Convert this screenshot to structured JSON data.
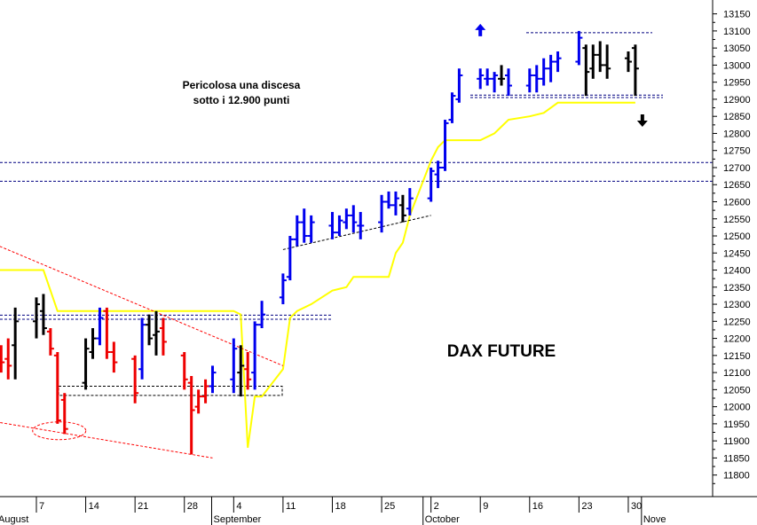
{
  "chart_data": {
    "type": "ohlc-bar",
    "title": "DAX FUTURE",
    "annotation": [
      "Pericolosa una discesa",
      "sotto i 12.900 punti"
    ],
    "y_ticks": [
      11800,
      11850,
      11900,
      11950,
      12000,
      12050,
      12100,
      12150,
      12200,
      12250,
      12300,
      12350,
      12400,
      12450,
      12500,
      12550,
      12600,
      12650,
      12700,
      12750,
      12800,
      12850,
      12900,
      12950,
      13000,
      13050,
      13100,
      13150
    ],
    "ylim": [
      11755,
      13175
    ],
    "x_day_ticks": [
      "7",
      "14",
      "21",
      "28",
      "4",
      "11",
      "18",
      "25",
      "2",
      "9",
      "16",
      "23",
      "30"
    ],
    "x_month_labels": [
      "August",
      "September",
      "October",
      "Nove"
    ],
    "colors": {
      "up": "#0000ee",
      "down": "#ee0000",
      "neutral": "#000000",
      "ma": "#ffff00",
      "level": "#000080",
      "trend": "#ff0000"
    },
    "levels": [
      12660,
      12665,
      12905,
      12912,
      12268,
      12033,
      12060
    ],
    "bars": [
      {
        "d": "Aug 1",
        "o": 12230,
        "h": 12260,
        "l": 12120,
        "c": 12180,
        "color": "black"
      },
      {
        "d": "Aug 2",
        "o": 12150,
        "h": 12180,
        "l": 12100,
        "c": 12130,
        "color": "red"
      },
      {
        "d": "Aug 3",
        "o": 12140,
        "h": 12200,
        "l": 12080,
        "c": 12120,
        "color": "red"
      },
      {
        "d": "Aug 4",
        "o": 12180,
        "h": 12290,
        "l": 12080,
        "c": 12250,
        "color": "black"
      },
      {
        "d": "Aug 7",
        "o": 12250,
        "h": 12320,
        "l": 12200,
        "c": 12300,
        "color": "black"
      },
      {
        "d": "Aug 8",
        "o": 12280,
        "h": 12330,
        "l": 12210,
        "c": 12230,
        "color": "black"
      },
      {
        "d": "Aug 9",
        "o": 12220,
        "h": 12230,
        "l": 12150,
        "c": 12170,
        "color": "red"
      },
      {
        "d": "Aug 10",
        "o": 12150,
        "h": 12160,
        "l": 11950,
        "c": 11960,
        "color": "red"
      },
      {
        "d": "Aug 11",
        "o": 12020,
        "h": 12040,
        "l": 11920,
        "c": 11935,
        "color": "red"
      },
      {
        "d": "Aug 14",
        "o": 12070,
        "h": 12200,
        "l": 12050,
        "c": 12170,
        "color": "black"
      },
      {
        "d": "Aug 15",
        "o": 12160,
        "h": 12230,
        "l": 12140,
        "c": 12200,
        "color": "black"
      },
      {
        "d": "Aug 16",
        "o": 12200,
        "h": 12290,
        "l": 12180,
        "c": 12260,
        "color": "blue"
      },
      {
        "d": "Aug 17",
        "o": 12280,
        "h": 12290,
        "l": 12140,
        "c": 12160,
        "color": "red"
      },
      {
        "d": "Aug 18",
        "o": 12160,
        "h": 12190,
        "l": 12100,
        "c": 12130,
        "color": "red"
      },
      {
        "d": "Aug 21",
        "o": 12140,
        "h": 12150,
        "l": 12010,
        "c": 12040,
        "color": "red"
      },
      {
        "d": "Aug 22",
        "o": 12110,
        "h": 12260,
        "l": 12080,
        "c": 12240,
        "color": "blue"
      },
      {
        "d": "Aug 23",
        "o": 12240,
        "h": 12270,
        "l": 12180,
        "c": 12200,
        "color": "black"
      },
      {
        "d": "Aug 24",
        "o": 12210,
        "h": 12280,
        "l": 12150,
        "c": 12220,
        "color": "black"
      },
      {
        "d": "Aug 25",
        "o": 12230,
        "h": 12260,
        "l": 12150,
        "c": 12190,
        "color": "red"
      },
      {
        "d": "Aug 28",
        "o": 12150,
        "h": 12160,
        "l": 12050,
        "c": 12080,
        "color": "red"
      },
      {
        "d": "Aug 29",
        "o": 12070,
        "h": 12090,
        "l": 11860,
        "c": 11990,
        "color": "red"
      },
      {
        "d": "Aug 30",
        "o": 12000,
        "h": 12050,
        "l": 11980,
        "c": 12030,
        "color": "red"
      },
      {
        "d": "Aug 31",
        "o": 12030,
        "h": 12080,
        "l": 12010,
        "c": 12060,
        "color": "red"
      },
      {
        "d": "Sep 1",
        "o": 12060,
        "h": 12120,
        "l": 12040,
        "c": 12100,
        "color": "blue"
      },
      {
        "d": "Sep 4",
        "o": 12080,
        "h": 12200,
        "l": 12040,
        "c": 12170,
        "color": "blue"
      },
      {
        "d": "Sep 5",
        "o": 12100,
        "h": 12180,
        "l": 12030,
        "c": 12120,
        "color": "black"
      },
      {
        "d": "Sep 6",
        "o": 12110,
        "h": 12160,
        "l": 12050,
        "c": 12080,
        "color": "red"
      },
      {
        "d": "Sep 7",
        "o": 12100,
        "h": 12250,
        "l": 12050,
        "c": 12240,
        "color": "blue"
      },
      {
        "d": "Sep 8",
        "o": 12240,
        "h": 12310,
        "l": 12230,
        "c": 12270,
        "color": "blue"
      },
      {
        "d": "Sep 11",
        "o": 12320,
        "h": 12390,
        "l": 12300,
        "c": 12370,
        "color": "blue"
      },
      {
        "d": "Sep 12",
        "o": 12380,
        "h": 12500,
        "l": 12370,
        "c": 12490,
        "color": "blue"
      },
      {
        "d": "Sep 13",
        "o": 12490,
        "h": 12560,
        "l": 12470,
        "c": 12540,
        "color": "blue"
      },
      {
        "d": "Sep 14",
        "o": 12540,
        "h": 12580,
        "l": 12480,
        "c": 12500,
        "color": "blue"
      },
      {
        "d": "Sep 15",
        "o": 12500,
        "h": 12560,
        "l": 12480,
        "c": 12540,
        "color": "blue"
      },
      {
        "d": "Sep 18",
        "o": 12530,
        "h": 12570,
        "l": 12490,
        "c": 12510,
        "color": "blue"
      },
      {
        "d": "Sep 19",
        "o": 12510,
        "h": 12560,
        "l": 12500,
        "c": 12545,
        "color": "blue"
      },
      {
        "d": "Sep 20",
        "o": 12540,
        "h": 12580,
        "l": 12520,
        "c": 12560,
        "color": "blue"
      },
      {
        "d": "Sep 21",
        "o": 12560,
        "h": 12590,
        "l": 12510,
        "c": 12540,
        "color": "blue"
      },
      {
        "d": "Sep 22",
        "o": 12530,
        "h": 12570,
        "l": 12490,
        "c": 12530,
        "color": "blue"
      },
      {
        "d": "Sep 25",
        "o": 12540,
        "h": 12620,
        "l": 12510,
        "c": 12600,
        "color": "blue"
      },
      {
        "d": "Sep 26",
        "o": 12600,
        "h": 12630,
        "l": 12580,
        "c": 12590,
        "color": "blue"
      },
      {
        "d": "Sep 27",
        "o": 12590,
        "h": 12630,
        "l": 12560,
        "c": 12610,
        "color": "blue"
      },
      {
        "d": "Sep 28",
        "o": 12590,
        "h": 12620,
        "l": 12540,
        "c": 12560,
        "color": "black"
      },
      {
        "d": "Sep 29",
        "o": 12580,
        "h": 12640,
        "l": 12560,
        "c": 12610,
        "color": "blue"
      },
      {
        "d": "Oct 2",
        "o": 12610,
        "h": 12700,
        "l": 12600,
        "c": 12690,
        "color": "blue"
      },
      {
        "d": "Oct 3",
        "o": 12680,
        "h": 12720,
        "l": 12640,
        "c": 12700,
        "color": "blue"
      },
      {
        "d": "Oct 4",
        "o": 12700,
        "h": 12840,
        "l": 12690,
        "c": 12830,
        "color": "blue"
      },
      {
        "d": "Oct 5",
        "o": 12840,
        "h": 12920,
        "l": 12830,
        "c": 12910,
        "color": "blue"
      },
      {
        "d": "Oct 6",
        "o": 12900,
        "h": 12990,
        "l": 12890,
        "c": 12970,
        "color": "blue"
      },
      {
        "d": "Oct 9",
        "o": 12960,
        "h": 12990,
        "l": 12930,
        "c": 12970,
        "color": "blue"
      },
      {
        "d": "Oct 10",
        "o": 12960,
        "h": 12990,
        "l": 12940,
        "c": 12960,
        "color": "blue"
      },
      {
        "d": "Oct 11",
        "o": 12960,
        "h": 12980,
        "l": 12920,
        "c": 12970,
        "color": "blue"
      },
      {
        "d": "Oct 12",
        "o": 12960,
        "h": 13000,
        "l": 12940,
        "c": 12960,
        "color": "black"
      },
      {
        "d": "Oct 13",
        "o": 12970,
        "h": 12990,
        "l": 12910,
        "c": 12940,
        "color": "blue"
      },
      {
        "d": "Oct 16",
        "o": 12940,
        "h": 12990,
        "l": 12920,
        "c": 12970,
        "color": "blue"
      },
      {
        "d": "Oct 17",
        "o": 12970,
        "h": 13000,
        "l": 12920,
        "c": 12960,
        "color": "blue"
      },
      {
        "d": "Oct 18",
        "o": 12960,
        "h": 13020,
        "l": 12940,
        "c": 12990,
        "color": "blue"
      },
      {
        "d": "Oct 19",
        "o": 12990,
        "h": 13030,
        "l": 12950,
        "c": 13010,
        "color": "blue"
      },
      {
        "d": "Oct 20",
        "o": 13010,
        "h": 13040,
        "l": 12980,
        "c": 13020,
        "color": "blue"
      },
      {
        "d": "Oct 23",
        "o": 13010,
        "h": 13100,
        "l": 13000,
        "c": 13080,
        "color": "blue"
      },
      {
        "d": "Oct 24",
        "o": 13050,
        "h": 13060,
        "l": 12910,
        "c": 12980,
        "color": "black"
      },
      {
        "d": "Oct 25",
        "o": 12990,
        "h": 13060,
        "l": 12960,
        "c": 13030,
        "color": "black"
      },
      {
        "d": "Oct 26",
        "o": 13030,
        "h": 13070,
        "l": 12980,
        "c": 13000,
        "color": "black"
      },
      {
        "d": "Oct 27",
        "o": 13000,
        "h": 13060,
        "l": 12960,
        "c": 12990,
        "color": "black"
      },
      {
        "d": "Oct 30",
        "o": 13020,
        "h": 13040,
        "l": 12980,
        "c": 13010,
        "color": "black"
      },
      {
        "d": "Oct 31",
        "o": 13050,
        "h": 13060,
        "l": 12910,
        "c": 12990,
        "color": "black"
      }
    ],
    "moving_average": [
      {
        "d": "Aug 1",
        "v": 12400
      },
      {
        "d": "Aug 8",
        "v": 12400
      },
      {
        "d": "Aug 10",
        "v": 12280
      },
      {
        "d": "Sep 4",
        "v": 12280
      },
      {
        "d": "Sep 5",
        "v": 12270
      },
      {
        "d": "Sep 6",
        "v": 11880
      },
      {
        "d": "Sep 7",
        "v": 12030
      },
      {
        "d": "Sep 8",
        "v": 12030
      },
      {
        "d": "Sep 11",
        "v": 12110
      },
      {
        "d": "Sep 12",
        "v": 12260
      },
      {
        "d": "Sep 13",
        "v": 12280
      },
      {
        "d": "Sep 15",
        "v": 12300
      },
      {
        "d": "Sep 18",
        "v": 12340
      },
      {
        "d": "Sep 20",
        "v": 12350
      },
      {
        "d": "Sep 21",
        "v": 12380
      },
      {
        "d": "Sep 26",
        "v": 12380
      },
      {
        "d": "Sep 27",
        "v": 12450
      },
      {
        "d": "Sep 28",
        "v": 12480
      },
      {
        "d": "Sep 29",
        "v": 12560
      },
      {
        "d": "Oct 2",
        "v": 12720
      },
      {
        "d": "Oct 3",
        "v": 12760
      },
      {
        "d": "Oct 4",
        "v": 12780
      },
      {
        "d": "Oct 9",
        "v": 12780
      },
      {
        "d": "Oct 11",
        "v": 12800
      },
      {
        "d": "Oct 12",
        "v": 12820
      },
      {
        "d": "Oct 13",
        "v": 12840
      },
      {
        "d": "Oct 16",
        "v": 12850
      },
      {
        "d": "Oct 18",
        "v": 12860
      },
      {
        "d": "Oct 20",
        "v": 12890
      },
      {
        "d": "Oct 30",
        "v": 12890
      },
      {
        "d": "Oct 31",
        "v": 12890
      }
    ],
    "trendlines": [
      {
        "color": "red",
        "from": {
          "d": "Jul 27",
          "v": 12520
        },
        "to": {
          "d": "Sep 11",
          "v": 12120
        }
      },
      {
        "color": "red",
        "from": {
          "d": "Jul 31",
          "v": 11960
        },
        "to": {
          "d": "Sep 1",
          "v": 11850
        }
      },
      {
        "color": "black",
        "from": {
          "d": "Sep 11",
          "v": 12460
        },
        "to": {
          "d": "Oct 2",
          "v": 12560
        }
      }
    ],
    "highlight_ellipse": {
      "d": "Aug 11",
      "v": 11940
    },
    "arrows": [
      {
        "direction": "up",
        "color": "blue",
        "d": "Oct 9",
        "v": 13100
      },
      {
        "direction": "down",
        "color": "black",
        "d": "Nov 1",
        "v": 12840
      }
    ]
  }
}
